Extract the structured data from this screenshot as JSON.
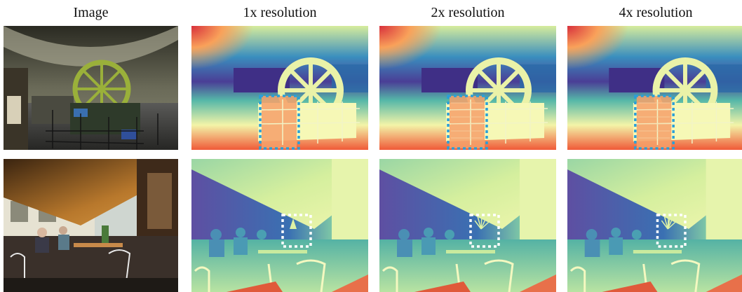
{
  "columns": [
    {
      "label": "Image"
    },
    {
      "label": "1x resolution"
    },
    {
      "label": "2x resolution"
    },
    {
      "label": "4x resolution"
    }
  ],
  "rows": [
    {
      "scene": "museum-engine-hall",
      "highlight_color": "#2a9fd8"
    },
    {
      "scene": "cafe-terrace",
      "highlight_color": "#ffffff"
    }
  ],
  "colormap": "spectral-depth"
}
